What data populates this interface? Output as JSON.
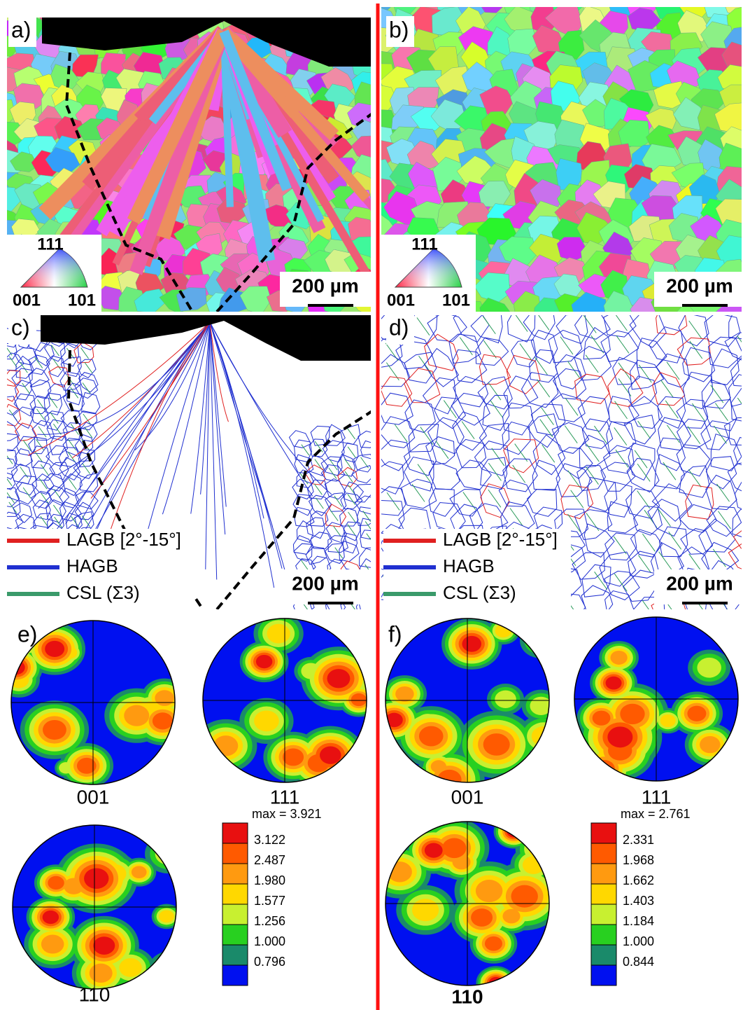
{
  "panels": {
    "a": {
      "label": "a)",
      "triangle": {
        "top": "111",
        "left": "001",
        "right": "101"
      },
      "scale": "200 µm"
    },
    "b": {
      "label": "b)",
      "triangle": {
        "top": "111",
        "left": "001",
        "right": "101"
      },
      "scale": "200 µm"
    },
    "c": {
      "label": "c)",
      "legend": [
        "LAGB [2°-15°]",
        "HAGB",
        "CSL (Σ3)"
      ],
      "scale": "200 µm"
    },
    "d": {
      "label": "d)",
      "legend": [
        "LAGB [2°-15°]",
        "HAGB",
        "CSL (Σ3)"
      ],
      "scale": "200 µm"
    },
    "e": {
      "label": "e)",
      "pole_figures": [
        "001",
        "111",
        "110"
      ],
      "colorbar": {
        "max": "max = 3.921",
        "levels": [
          "3.122",
          "2.487",
          "1.980",
          "1.577",
          "1.256",
          "1.000",
          "0.796"
        ]
      }
    },
    "f": {
      "label": "f)",
      "pole_figures": [
        "001",
        "111",
        "110"
      ],
      "colorbar": {
        "max": "max = 2.761",
        "levels": [
          "2.331",
          "1.968",
          "1.662",
          "1.403",
          "1.184",
          "1.000",
          "0.844"
        ]
      }
    }
  }
}
